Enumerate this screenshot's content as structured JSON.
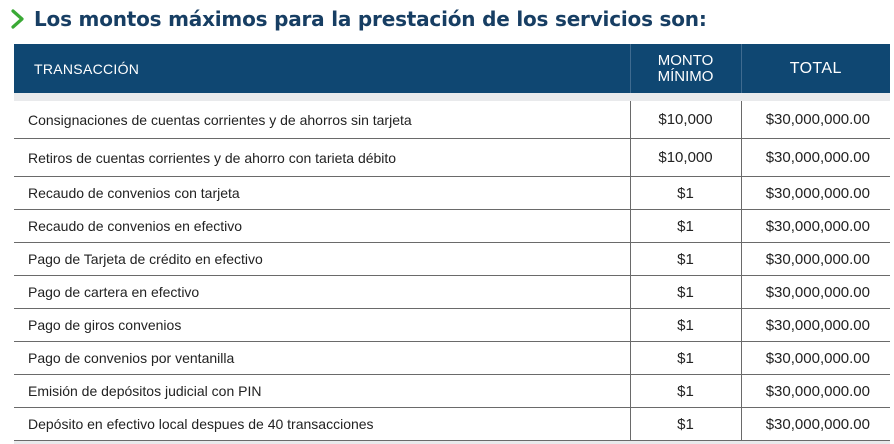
{
  "heading": {
    "icon": "chevron-right-icon",
    "title": "Los montos máximos para la prestación de los servicios son:",
    "title_color": "#173e63",
    "icon_color": "#3aa935"
  },
  "table": {
    "header_color": "#0f4772",
    "columns": {
      "transaction": "TRANSACCIÓN",
      "min_amount_line1": "MONTO",
      "min_amount_line2": "MÍNIMO",
      "total": "TOTAL"
    },
    "rows": [
      {
        "transaction": "Consignaciones de cuentas corrientes y de ahorros sin tarjeta",
        "min_amount": "$10,000",
        "total": "$30,000,000.00"
      },
      {
        "transaction": "Retiros de cuentas corrientes y de ahorro con tarieta débito",
        "min_amount": "$10,000",
        "total": "$30,000,000.00"
      },
      {
        "transaction": "Recaudo de convenios con tarjeta",
        "min_amount": "$1",
        "total": "$30,000,000.00"
      },
      {
        "transaction": "Recaudo de convenios en efectivo",
        "min_amount": "$1",
        "total": "$30,000,000.00"
      },
      {
        "transaction": "Pago de Tarjeta de crédito en efectivo",
        "min_amount": "$1",
        "total": "$30,000,000.00"
      },
      {
        "transaction": "Pago de cartera en efectivo",
        "min_amount": "$1",
        "total": "$30,000,000.00"
      },
      {
        "transaction": "Pago de giros convenios",
        "min_amount": "$1",
        "total": "$30,000,000.00"
      },
      {
        "transaction": "Pago de convenios por ventanilla",
        "min_amount": "$1",
        "total": "$30,000,000.00"
      },
      {
        "transaction": "Emisión de depósitos judicial con PIN",
        "min_amount": "$1",
        "total": "$30,000,000.00"
      },
      {
        "transaction": "Depósito en efectivo local despues de 40 transacciones",
        "min_amount": "$1",
        "total": "$30,000,000.00"
      }
    ]
  }
}
